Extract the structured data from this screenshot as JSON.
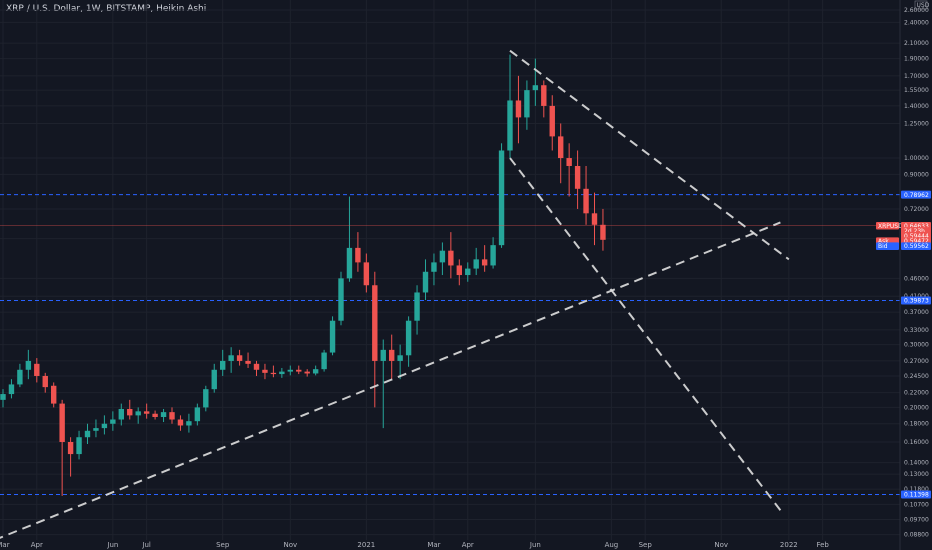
{
  "chart_data": {
    "type": "candlestick",
    "title": "XRP / U.S. Dollar, 1W, BITSTAMP, Heikin Ashi",
    "currency_label": "USD",
    "scale": "log",
    "ylim": [
      0.085,
      2.6
    ],
    "colors": {
      "up": "#26a69a",
      "down": "#ef5350",
      "background": "#131722",
      "grid": "#1e222d",
      "hline": "#2962ff",
      "trendline": "#e0e0e0"
    },
    "y_ticks": [
      "2.60000",
      "2.40000",
      "2.10000",
      "1.90000",
      "1.70000",
      "1.55000",
      "1.40000",
      "1.25000",
      "1.00000",
      "0.90000",
      "0.72000",
      "0.59444",
      "0.46000",
      "0.41000",
      "0.37000",
      "0.33000",
      "0.30000",
      "0.27000",
      "0.24500",
      "0.22000",
      "0.20000",
      "0.18000",
      "0.16000",
      "0.14000",
      "0.13000",
      "0.11800",
      "0.10700",
      "0.09700",
      "0.08800"
    ],
    "x_ticks": [
      "Mar",
      "Apr",
      "Jun",
      "Jul",
      "Sep",
      "Nov",
      "2021",
      "Mar",
      "Apr",
      "Jun",
      "Aug",
      "Sep",
      "Nov",
      "2022",
      "Feb"
    ],
    "x_tick_weeks": [
      0,
      4,
      13,
      17,
      26,
      34,
      43,
      51,
      55,
      63,
      72,
      76,
      85,
      93,
      97
    ],
    "candles": [
      [
        0.21,
        0.225,
        0.2,
        0.218
      ],
      [
        0.218,
        0.24,
        0.212,
        0.232
      ],
      [
        0.232,
        0.265,
        0.228,
        0.255
      ],
      [
        0.255,
        0.29,
        0.24,
        0.27
      ],
      [
        0.265,
        0.275,
        0.235,
        0.245
      ],
      [
        0.245,
        0.25,
        0.22,
        0.228
      ],
      [
        0.23,
        0.235,
        0.2,
        0.205
      ],
      [
        0.205,
        0.21,
        0.113,
        0.16
      ],
      [
        0.16,
        0.165,
        0.128,
        0.148
      ],
      [
        0.148,
        0.172,
        0.143,
        0.165
      ],
      [
        0.165,
        0.18,
        0.158,
        0.172
      ],
      [
        0.172,
        0.185,
        0.165,
        0.175
      ],
      [
        0.175,
        0.19,
        0.168,
        0.18
      ],
      [
        0.18,
        0.195,
        0.172,
        0.185
      ],
      [
        0.185,
        0.205,
        0.178,
        0.198
      ],
      [
        0.198,
        0.21,
        0.185,
        0.19
      ],
      [
        0.19,
        0.2,
        0.18,
        0.195
      ],
      [
        0.195,
        0.205,
        0.186,
        0.192
      ],
      [
        0.192,
        0.196,
        0.185,
        0.188
      ],
      [
        0.188,
        0.198,
        0.182,
        0.194
      ],
      [
        0.194,
        0.2,
        0.18,
        0.185
      ],
      [
        0.185,
        0.19,
        0.172,
        0.178
      ],
      [
        0.178,
        0.192,
        0.17,
        0.183
      ],
      [
        0.183,
        0.205,
        0.178,
        0.2
      ],
      [
        0.2,
        0.23,
        0.195,
        0.225
      ],
      [
        0.225,
        0.265,
        0.22,
        0.255
      ],
      [
        0.255,
        0.29,
        0.245,
        0.27
      ],
      [
        0.27,
        0.295,
        0.25,
        0.28
      ],
      [
        0.28,
        0.29,
        0.262,
        0.27
      ],
      [
        0.27,
        0.285,
        0.258,
        0.265
      ],
      [
        0.265,
        0.27,
        0.245,
        0.255
      ],
      [
        0.255,
        0.265,
        0.24,
        0.25
      ],
      [
        0.25,
        0.262,
        0.243,
        0.248
      ],
      [
        0.248,
        0.258,
        0.242,
        0.252
      ],
      [
        0.252,
        0.262,
        0.246,
        0.255
      ],
      [
        0.255,
        0.262,
        0.248,
        0.252
      ],
      [
        0.252,
        0.256,
        0.244,
        0.249
      ],
      [
        0.249,
        0.262,
        0.246,
        0.256
      ],
      [
        0.256,
        0.29,
        0.252,
        0.285
      ],
      [
        0.285,
        0.36,
        0.28,
        0.35
      ],
      [
        0.35,
        0.48,
        0.34,
        0.46
      ],
      [
        0.46,
        0.78,
        0.45,
        0.56
      ],
      [
        0.56,
        0.62,
        0.48,
        0.51
      ],
      [
        0.51,
        0.54,
        0.42,
        0.44
      ],
      [
        0.44,
        0.48,
        0.2,
        0.27
      ],
      [
        0.27,
        0.31,
        0.175,
        0.29
      ],
      [
        0.29,
        0.32,
        0.24,
        0.27
      ],
      [
        0.27,
        0.3,
        0.24,
        0.28
      ],
      [
        0.28,
        0.36,
        0.26,
        0.35
      ],
      [
        0.35,
        0.44,
        0.32,
        0.42
      ],
      [
        0.42,
        0.52,
        0.4,
        0.48
      ],
      [
        0.48,
        0.54,
        0.44,
        0.51
      ],
      [
        0.51,
        0.58,
        0.47,
        0.55
      ],
      [
        0.55,
        0.62,
        0.46,
        0.5
      ],
      [
        0.5,
        0.52,
        0.44,
        0.47
      ],
      [
        0.47,
        0.51,
        0.45,
        0.49
      ],
      [
        0.49,
        0.56,
        0.47,
        0.52
      ],
      [
        0.52,
        0.57,
        0.48,
        0.5
      ],
      [
        0.5,
        0.6,
        0.49,
        0.57
      ],
      [
        0.57,
        1.1,
        0.56,
        1.05
      ],
      [
        1.05,
        1.95,
        1.0,
        1.45
      ],
      [
        1.45,
        1.7,
        1.1,
        1.3
      ],
      [
        1.3,
        1.65,
        1.2,
        1.55
      ],
      [
        1.55,
        1.9,
        1.4,
        1.6
      ],
      [
        1.6,
        1.65,
        1.3,
        1.4
      ],
      [
        1.4,
        1.5,
        1.05,
        1.15
      ],
      [
        1.15,
        1.25,
        0.85,
        1.0
      ],
      [
        1.0,
        1.1,
        0.78,
        0.95
      ],
      [
        0.95,
        1.05,
        0.72,
        0.82
      ],
      [
        0.82,
        0.95,
        0.65,
        0.7
      ],
      [
        0.7,
        0.8,
        0.57,
        0.65
      ],
      [
        0.65,
        0.72,
        0.55,
        0.59
      ]
    ],
    "horizontal_lines": [
      {
        "value": 0.78962,
        "label": "0.78962"
      },
      {
        "value": 0.39873,
        "label": "0.39873"
      },
      {
        "value": 0.11398,
        "label": "0.11398"
      }
    ],
    "price_tags": [
      {
        "label": "XRPUSD",
        "value": "0.64633",
        "y": 0.646,
        "color": "#ef5350"
      },
      {
        "label": "",
        "value": "2d 23h",
        "y": 0.625,
        "color": "#ef5350"
      },
      {
        "label": "",
        "value": "0.59444",
        "y": 0.6055,
        "color": "#ef5350"
      },
      {
        "label": "Ask",
        "value": "0.59472",
        "y": 0.585,
        "color": "#ef5350"
      },
      {
        "label": "Bid",
        "value": "0.59562",
        "y": 0.566,
        "color": "#2962ff"
      }
    ],
    "trendlines": [
      {
        "from": [
          -1,
          0.085
        ],
        "to": [
          92,
          0.66
        ]
      },
      {
        "from": [
          60,
          2.0
        ],
        "to": [
          93,
          0.52
        ]
      },
      {
        "from": [
          60,
          1.0
        ],
        "to": [
          92,
          0.103
        ]
      }
    ]
  }
}
